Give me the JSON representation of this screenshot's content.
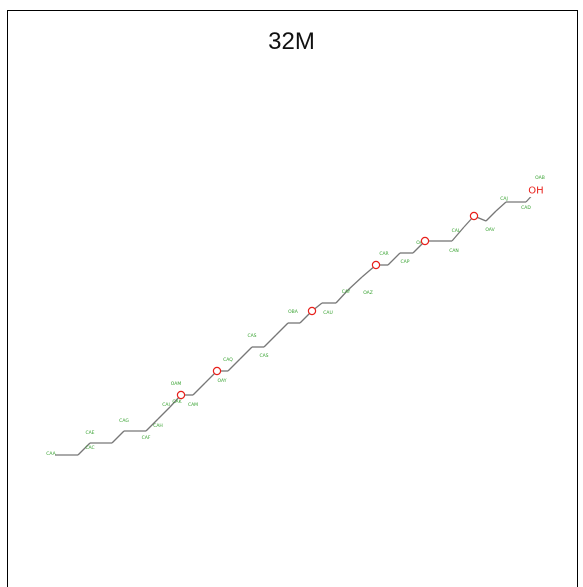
{
  "title": "32M",
  "colors": {
    "bond": "#777777",
    "oxygen": "#e8201b",
    "atom_label": "#33a02c"
  },
  "hydroxyl": {
    "symbol": "OH",
    "label": "OAB"
  },
  "atoms": [
    "CAA",
    "CAC",
    "CAE",
    "CAF",
    "CAG",
    "CAH",
    "CAI",
    "CAK",
    "OAM",
    "CAM",
    "CAQ",
    "OAY",
    "CAS",
    "CAS",
    "OBA",
    "CAU",
    "CAY",
    "OAZ",
    "CAR",
    "CAP",
    "OAX",
    "CAN",
    "CAL",
    "OAV",
    "CAJ",
    "CAD",
    "OAB"
  ]
}
